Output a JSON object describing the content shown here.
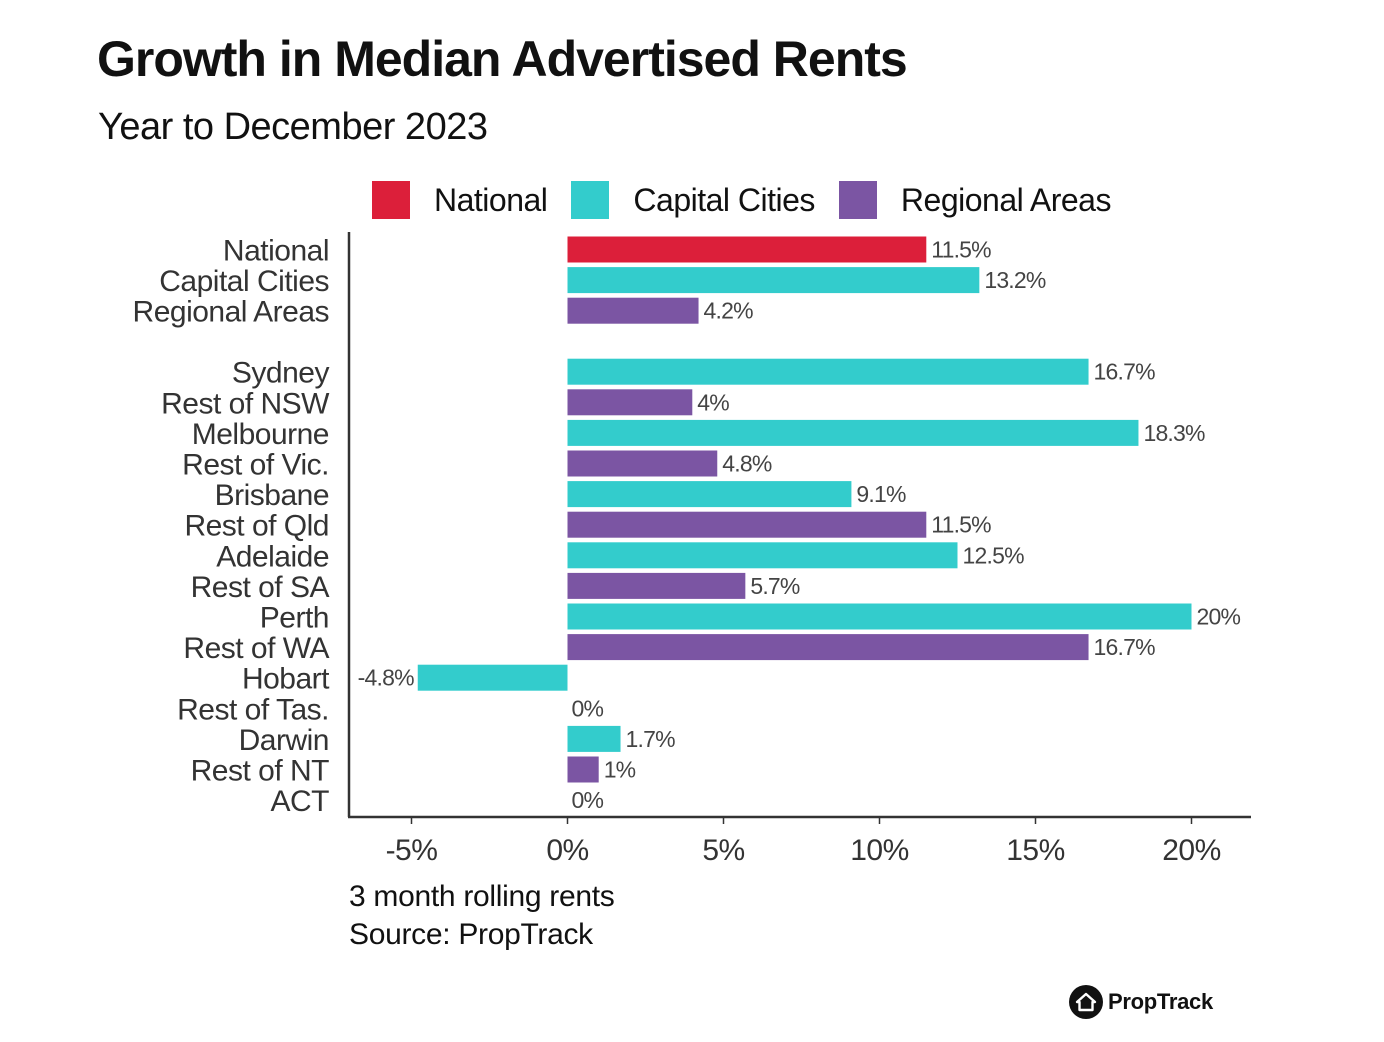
{
  "chart_data": {
    "type": "bar",
    "orientation": "horizontal",
    "title": "Growth in Median Advertised Rents",
    "subtitle": "Year to December 2023",
    "legend_position": "top",
    "series": [
      {
        "name": "National",
        "color": "#dc1f3a"
      },
      {
        "name": "Capital Cities",
        "color": "#33cccc"
      },
      {
        "name": "Regional Areas",
        "color": "#7b55a3"
      }
    ],
    "bars": [
      {
        "category": "National",
        "value": 11.5,
        "label": "11.5%",
        "series": "National",
        "group": 0
      },
      {
        "category": "Capital Cities",
        "value": 13.2,
        "label": "13.2%",
        "series": "Capital Cities",
        "group": 0
      },
      {
        "category": "Regional Areas",
        "value": 4.2,
        "label": "4.2%",
        "series": "Regional Areas",
        "group": 0
      },
      {
        "category": "Sydney",
        "value": 16.7,
        "label": "16.7%",
        "series": "Capital Cities",
        "group": 1
      },
      {
        "category": "Rest of NSW",
        "value": 4,
        "label": "4%",
        "series": "Regional Areas",
        "group": 1
      },
      {
        "category": "Melbourne",
        "value": 18.3,
        "label": "18.3%",
        "series": "Capital Cities",
        "group": 1
      },
      {
        "category": "Rest of Vic.",
        "value": 4.8,
        "label": "4.8%",
        "series": "Regional Areas",
        "group": 1
      },
      {
        "category": "Brisbane",
        "value": 9.1,
        "label": "9.1%",
        "series": "Capital Cities",
        "group": 1
      },
      {
        "category": "Rest of Qld",
        "value": 11.5,
        "label": "11.5%",
        "series": "Regional Areas",
        "group": 1
      },
      {
        "category": "Adelaide",
        "value": 12.5,
        "label": "12.5%",
        "series": "Capital Cities",
        "group": 1
      },
      {
        "category": "Rest of SA",
        "value": 5.7,
        "label": "5.7%",
        "series": "Regional Areas",
        "group": 1
      },
      {
        "category": "Perth",
        "value": 20,
        "label": "20%",
        "series": "Capital Cities",
        "group": 1
      },
      {
        "category": "Rest of WA",
        "value": 16.7,
        "label": "16.7%",
        "series": "Regional Areas",
        "group": 1
      },
      {
        "category": "Hobart",
        "value": -4.8,
        "label": "-4.8%",
        "series": "Capital Cities",
        "group": 1
      },
      {
        "category": "Rest of Tas.",
        "value": 0,
        "label": "0%",
        "series": "Regional Areas",
        "group": 1
      },
      {
        "category": "Darwin",
        "value": 1.7,
        "label": "1.7%",
        "series": "Capital Cities",
        "group": 1
      },
      {
        "category": "Rest of NT",
        "value": 1,
        "label": "1%",
        "series": "Regional Areas",
        "group": 1
      },
      {
        "category": "ACT",
        "value": 0,
        "label": "0%",
        "series": "Capital Cities",
        "group": 1
      }
    ],
    "x_ticks": [
      {
        "value": -5,
        "label": "-5%"
      },
      {
        "value": 0,
        "label": "0%"
      },
      {
        "value": 5,
        "label": "5%"
      },
      {
        "value": 10,
        "label": "10%"
      },
      {
        "value": 15,
        "label": "15%"
      },
      {
        "value": 20,
        "label": "20%"
      }
    ],
    "xlim": [
      -7,
      22
    ],
    "grid": false,
    "xlabel": "",
    "ylabel": ""
  },
  "notes": {
    "line1": "3 month rolling rents",
    "line2": "Source: PropTrack"
  },
  "brand": {
    "name": "PropTrack",
    "icon": "proptrack-house-icon"
  }
}
